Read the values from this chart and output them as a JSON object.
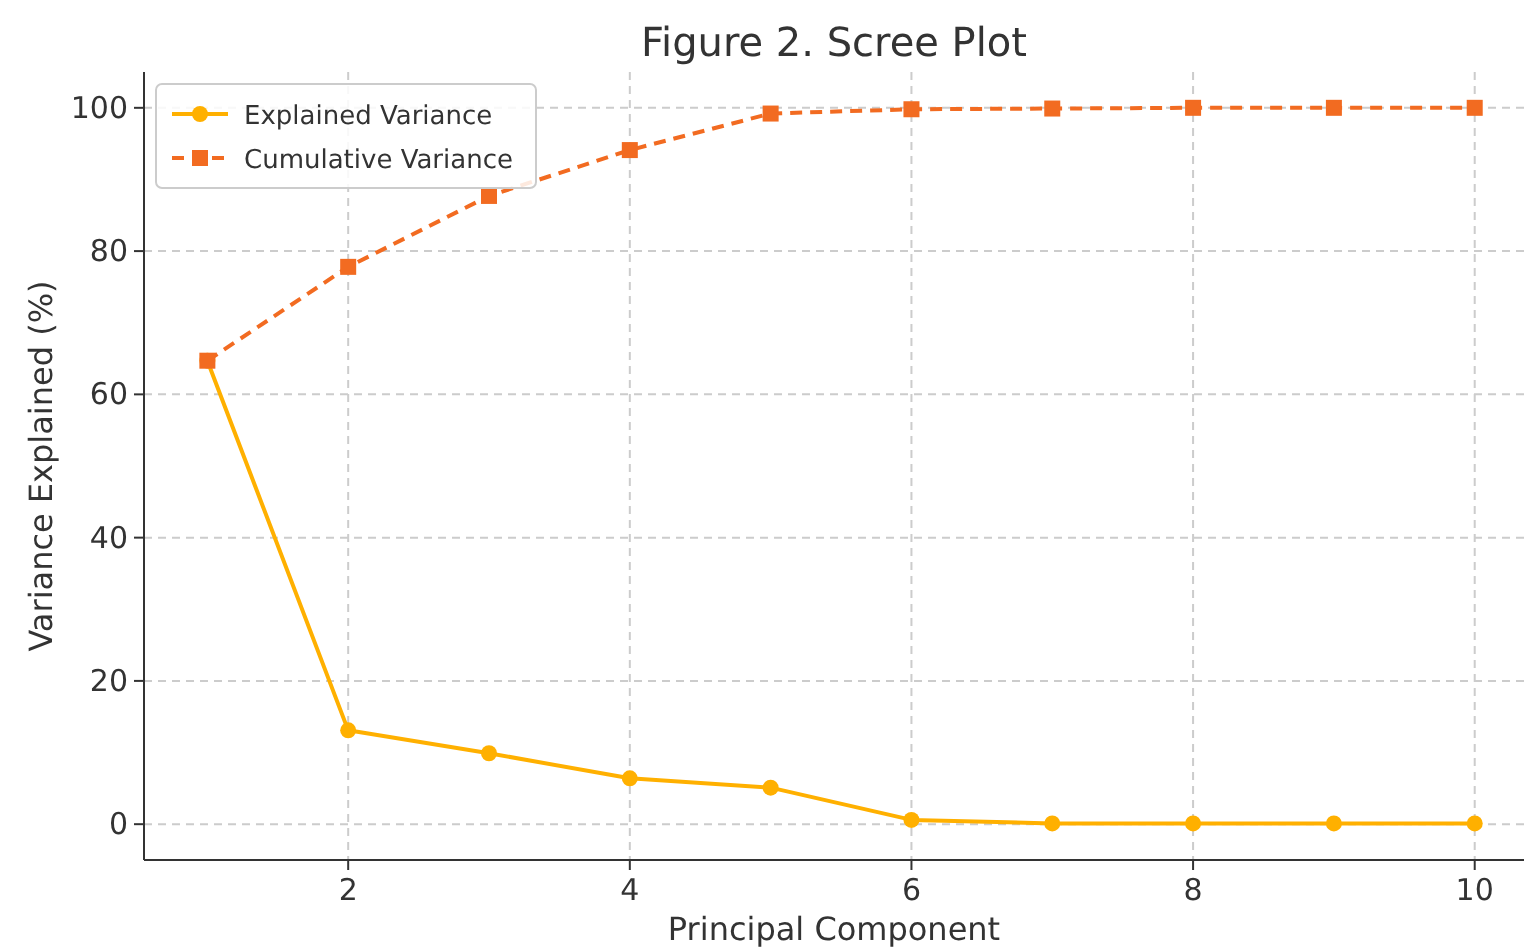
{
  "chart_data": {
    "type": "line",
    "title": "Figure 2. Scree Plot",
    "xlabel": "Principal Component",
    "ylabel": "Variance Explained (%)",
    "x": [
      1,
      2,
      3,
      4,
      5,
      6,
      7,
      8,
      9,
      10
    ],
    "series": [
      {
        "name": "Explained Variance",
        "color": "#ffb000",
        "marker": "circle",
        "line_style": "solid",
        "values": [
          64.7,
          13.1,
          9.9,
          6.4,
          5.1,
          0.6,
          0.1,
          0.1,
          0.1,
          0.1
        ]
      },
      {
        "name": "Cumulative Variance",
        "color": "#f26b21",
        "marker": "square",
        "line_style": "dashed",
        "values": [
          64.7,
          77.8,
          87.7,
          94.1,
          99.2,
          99.8,
          99.9,
          100,
          100,
          100
        ]
      }
    ],
    "xlim": [
      0.55,
      10.35
    ],
    "xticks": [
      2,
      4,
      6,
      8,
      10
    ],
    "ylim": [
      -5,
      105
    ],
    "yticks": [
      0,
      20,
      40,
      60,
      80,
      100
    ],
    "grid": true,
    "legend": "top left"
  }
}
